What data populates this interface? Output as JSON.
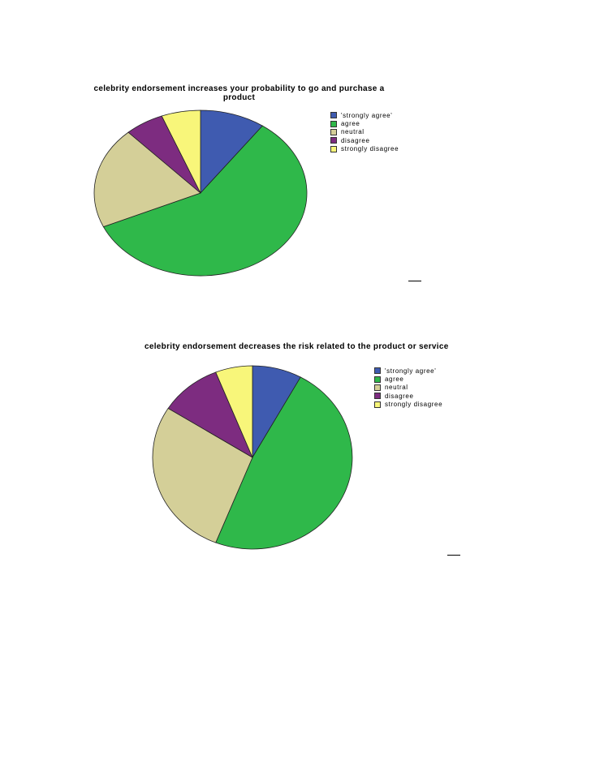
{
  "chart_data": [
    {
      "type": "pie",
      "title": "celebrity endorsement increases your probability to go and purchase a product",
      "categories": [
        "'strongly agree'",
        "agree",
        "neutral",
        "disagree",
        "strongly disagree"
      ],
      "values": [
        10,
        59,
        20,
        6,
        6
      ],
      "colors": [
        "#3f5bb0",
        "#2fb84a",
        "#d4cf98",
        "#7d2c80",
        "#f8f67a"
      ],
      "legend": "top-right"
    },
    {
      "type": "pie",
      "title": "celebrity endorsement decreases the risk related to the product or service",
      "categories": [
        "'strongly agree'",
        "agree",
        "neutral",
        "disagree",
        "strongly disagree"
      ],
      "values": [
        8,
        48,
        28,
        10,
        6
      ],
      "colors": [
        "#3f5bb0",
        "#2fb84a",
        "#d4cf98",
        "#7d2c80",
        "#f8f67a"
      ],
      "legend": "top-right"
    }
  ]
}
